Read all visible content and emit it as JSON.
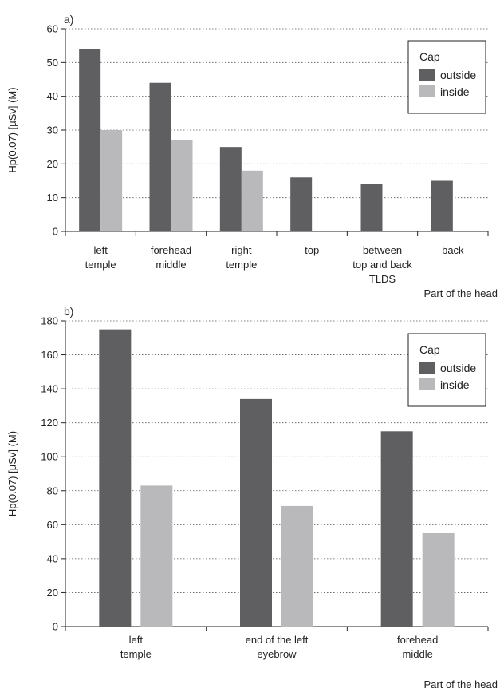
{
  "chart_data": [
    {
      "type": "bar",
      "panel_label": "a)",
      "ylabel": "Hp(0.07) [µSv] (M)",
      "xlabel": "Part of the head",
      "ylim": [
        0,
        60
      ],
      "yticks": [
        0,
        10,
        20,
        30,
        40,
        50,
        60
      ],
      "grid": "horizontal-dotted",
      "legend_position": "top-right",
      "legend_title": "Cap",
      "categories": [
        [
          "left",
          "temple"
        ],
        [
          "forehead",
          "middle"
        ],
        [
          "right",
          "temple"
        ],
        [
          "top"
        ],
        [
          "between",
          "top and back",
          "TLDS"
        ],
        [
          "back"
        ]
      ],
      "series": [
        {
          "name": "outside",
          "color": "#5f5f62",
          "values": [
            54,
            44,
            25,
            16,
            14,
            15
          ]
        },
        {
          "name": "inside",
          "color": "#b9b9bc",
          "values": [
            30,
            27,
            18,
            null,
            null,
            null
          ]
        }
      ]
    },
    {
      "type": "bar",
      "panel_label": "b)",
      "ylabel": "Hp(0.07) [µSv] (M)",
      "xlabel": "Part of the head",
      "ylim": [
        0,
        180
      ],
      "yticks": [
        0,
        20,
        40,
        60,
        80,
        100,
        120,
        140,
        160,
        180
      ],
      "grid": "horizontal-dotted",
      "legend_position": "top-right",
      "legend_title": "Cap",
      "categories": [
        [
          "left",
          "temple"
        ],
        [
          "end of the left",
          "eyebrow"
        ],
        [
          "forehead",
          "middle"
        ]
      ],
      "series": [
        {
          "name": "outside",
          "color": "#5f5f62",
          "values": [
            175,
            134,
            115
          ]
        },
        {
          "name": "inside",
          "color": "#b9b9bc",
          "values": [
            83,
            71,
            55
          ]
        }
      ]
    }
  ]
}
